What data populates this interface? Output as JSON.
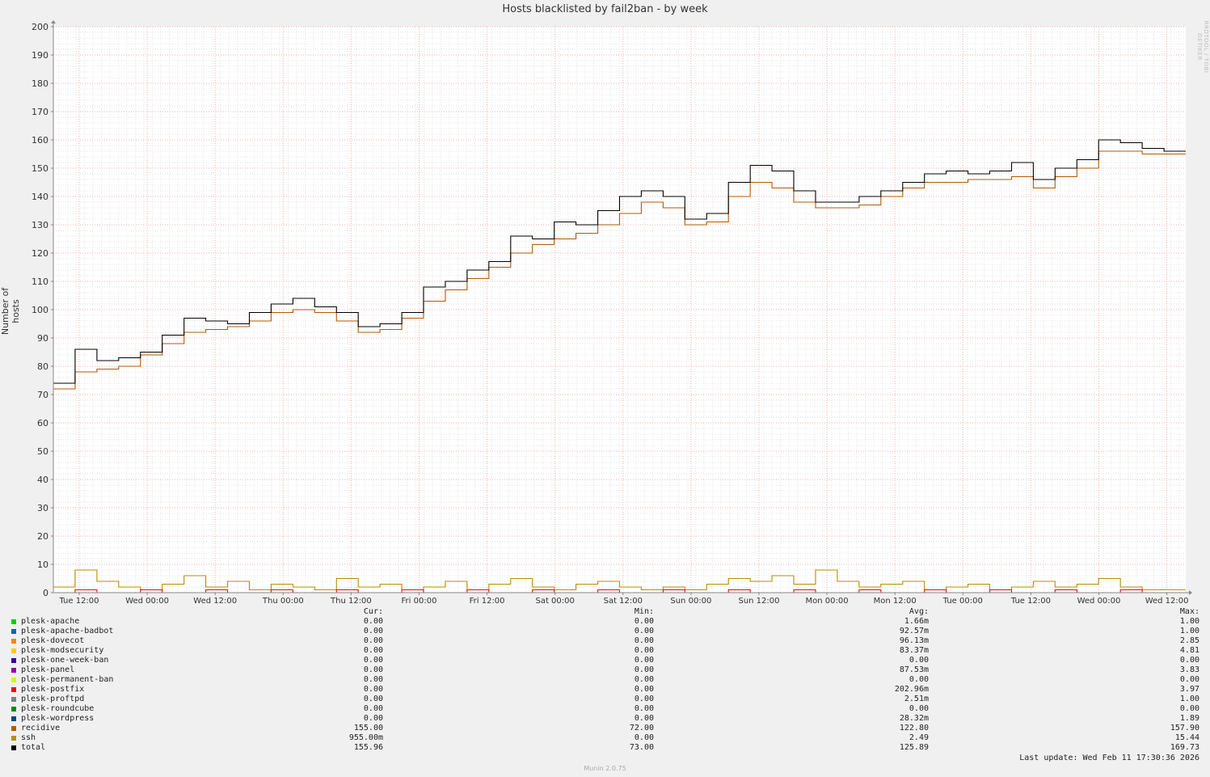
{
  "title": "Hosts blacklisted by fail2ban - by week",
  "watermark": "RRDTOOL / TOBI OETIKER",
  "footer": "Munin 2.0.75",
  "last_update": "Last update: Wed Feb 11 17:30:36 2026",
  "legend": {
    "headers": {
      "cur": "Cur:",
      "min": "Min:",
      "avg": "Avg:",
      "max": "Max:"
    },
    "rows": [
      {
        "name": "plesk-apache",
        "color": "#00cc00",
        "cur": "0.00",
        "min": "0.00",
        "avg": "1.66m",
        "max": "1.00"
      },
      {
        "name": "plesk-apache-badbot",
        "color": "#0066b3",
        "cur": "0.00",
        "min": "0.00",
        "avg": "92.57m",
        "max": "1.00"
      },
      {
        "name": "plesk-dovecot",
        "color": "#ff8000",
        "cur": "0.00",
        "min": "0.00",
        "avg": "96.13m",
        "max": "2.85"
      },
      {
        "name": "plesk-modsecurity",
        "color": "#ffcc00",
        "cur": "0.00",
        "min": "0.00",
        "avg": "83.37m",
        "max": "4.81"
      },
      {
        "name": "plesk-one-week-ban",
        "color": "#330099",
        "cur": "0.00",
        "min": "0.00",
        "avg": "0.00",
        "max": "0.00"
      },
      {
        "name": "plesk-panel",
        "color": "#990099",
        "cur": "0.00",
        "min": "0.00",
        "avg": "87.53m",
        "max": "3.83"
      },
      {
        "name": "plesk-permanent-ban",
        "color": "#ccff00",
        "cur": "0.00",
        "min": "0.00",
        "avg": "0.00",
        "max": "0.00"
      },
      {
        "name": "plesk-postfix",
        "color": "#ff0000",
        "cur": "0.00",
        "min": "0.00",
        "avg": "202.96m",
        "max": "3.97"
      },
      {
        "name": "plesk-proftpd",
        "color": "#808080",
        "cur": "0.00",
        "min": "0.00",
        "avg": "2.51m",
        "max": "1.00"
      },
      {
        "name": "plesk-roundcube",
        "color": "#008f00",
        "cur": "0.00",
        "min": "0.00",
        "avg": "0.00",
        "max": "0.00"
      },
      {
        "name": "plesk-wordpress",
        "color": "#00487d",
        "cur": "0.00",
        "min": "0.00",
        "avg": "28.32m",
        "max": "1.89"
      },
      {
        "name": "recidive",
        "color": "#b35a00",
        "cur": "155.00",
        "min": "72.00",
        "avg": "122.80",
        "max": "157.90"
      },
      {
        "name": "ssh",
        "color": "#b38f00",
        "cur": "955.00m",
        "min": "0.00",
        "avg": "2.49",
        "max": "15.44"
      },
      {
        "name": "total",
        "color": "#000000",
        "cur": "155.96",
        "min": "73.00",
        "avg": "125.89",
        "max": "169.73"
      }
    ]
  },
  "chart_data": {
    "type": "line",
    "title": "Hosts blacklisted by fail2ban - by week",
    "ylabel": "Number of hosts",
    "xlabel": "",
    "ylim": [
      0,
      200
    ],
    "yticks": [
      0,
      10,
      20,
      30,
      40,
      50,
      60,
      70,
      80,
      90,
      100,
      110,
      120,
      130,
      140,
      150,
      160,
      170,
      180,
      190,
      200
    ],
    "x_tick_labels": [
      "Tue 12:00",
      "Wed 00:00",
      "Wed 12:00",
      "Thu 00:00",
      "Thu 12:00",
      "Fri 00:00",
      "Fri 12:00",
      "Sat 00:00",
      "Sat 12:00",
      "Sun 00:00",
      "Sun 12:00",
      "Mon 00:00",
      "Mon 12:00",
      "Tue 00:00",
      "Tue 12:00",
      "Wed 00:00",
      "Wed 12:00"
    ],
    "grid": true,
    "series": [
      {
        "name": "recidive",
        "color": "#b35a00",
        "values": [
          72,
          78,
          79,
          80,
          84,
          88,
          92,
          93,
          94,
          96,
          99,
          100,
          99,
          96,
          92,
          93,
          97,
          103,
          107,
          111,
          115,
          120,
          123,
          125,
          127,
          130,
          134,
          138,
          136,
          130,
          131,
          140,
          145,
          143,
          138,
          136,
          136,
          137,
          140,
          143,
          145,
          145,
          146,
          146,
          147,
          143,
          147,
          150,
          156,
          156,
          155,
          155
        ]
      },
      {
        "name": "total",
        "color": "#000000",
        "values": [
          74,
          86,
          82,
          83,
          85,
          91,
          97,
          96,
          95,
          99,
          102,
          104,
          101,
          99,
          94,
          95,
          99,
          108,
          110,
          114,
          117,
          126,
          125,
          131,
          130,
          135,
          140,
          142,
          140,
          132,
          134,
          145,
          151,
          149,
          142,
          138,
          138,
          140,
          142,
          145,
          148,
          149,
          148,
          149,
          152,
          146,
          150,
          153,
          160,
          159,
          157,
          156
        ]
      },
      {
        "name": "ssh",
        "color": "#b38f00",
        "values": [
          2,
          8,
          4,
          2,
          1,
          3,
          6,
          2,
          4,
          1,
          3,
          2,
          1,
          5,
          2,
          3,
          1,
          2,
          4,
          1,
          3,
          5,
          2,
          1,
          3,
          4,
          2,
          1,
          2,
          1,
          3,
          5,
          4,
          6,
          3,
          8,
          4,
          2,
          3,
          4,
          1,
          2,
          3,
          1,
          2,
          4,
          2,
          3,
          5,
          2,
          1,
          1
        ]
      },
      {
        "name": "plesk-postfix",
        "color": "#ff0000",
        "values": [
          0,
          1,
          0,
          0,
          1,
          0,
          0,
          1,
          0,
          0,
          1,
          0,
          0,
          1,
          0,
          0,
          1,
          0,
          0,
          1,
          0,
          0,
          1,
          0,
          0,
          1,
          0,
          0,
          1,
          0,
          0,
          1,
          0,
          0,
          1,
          0,
          0,
          1,
          0,
          0,
          1,
          0,
          0,
          1,
          0,
          0,
          1,
          0,
          0,
          1,
          0,
          0
        ]
      }
    ]
  }
}
